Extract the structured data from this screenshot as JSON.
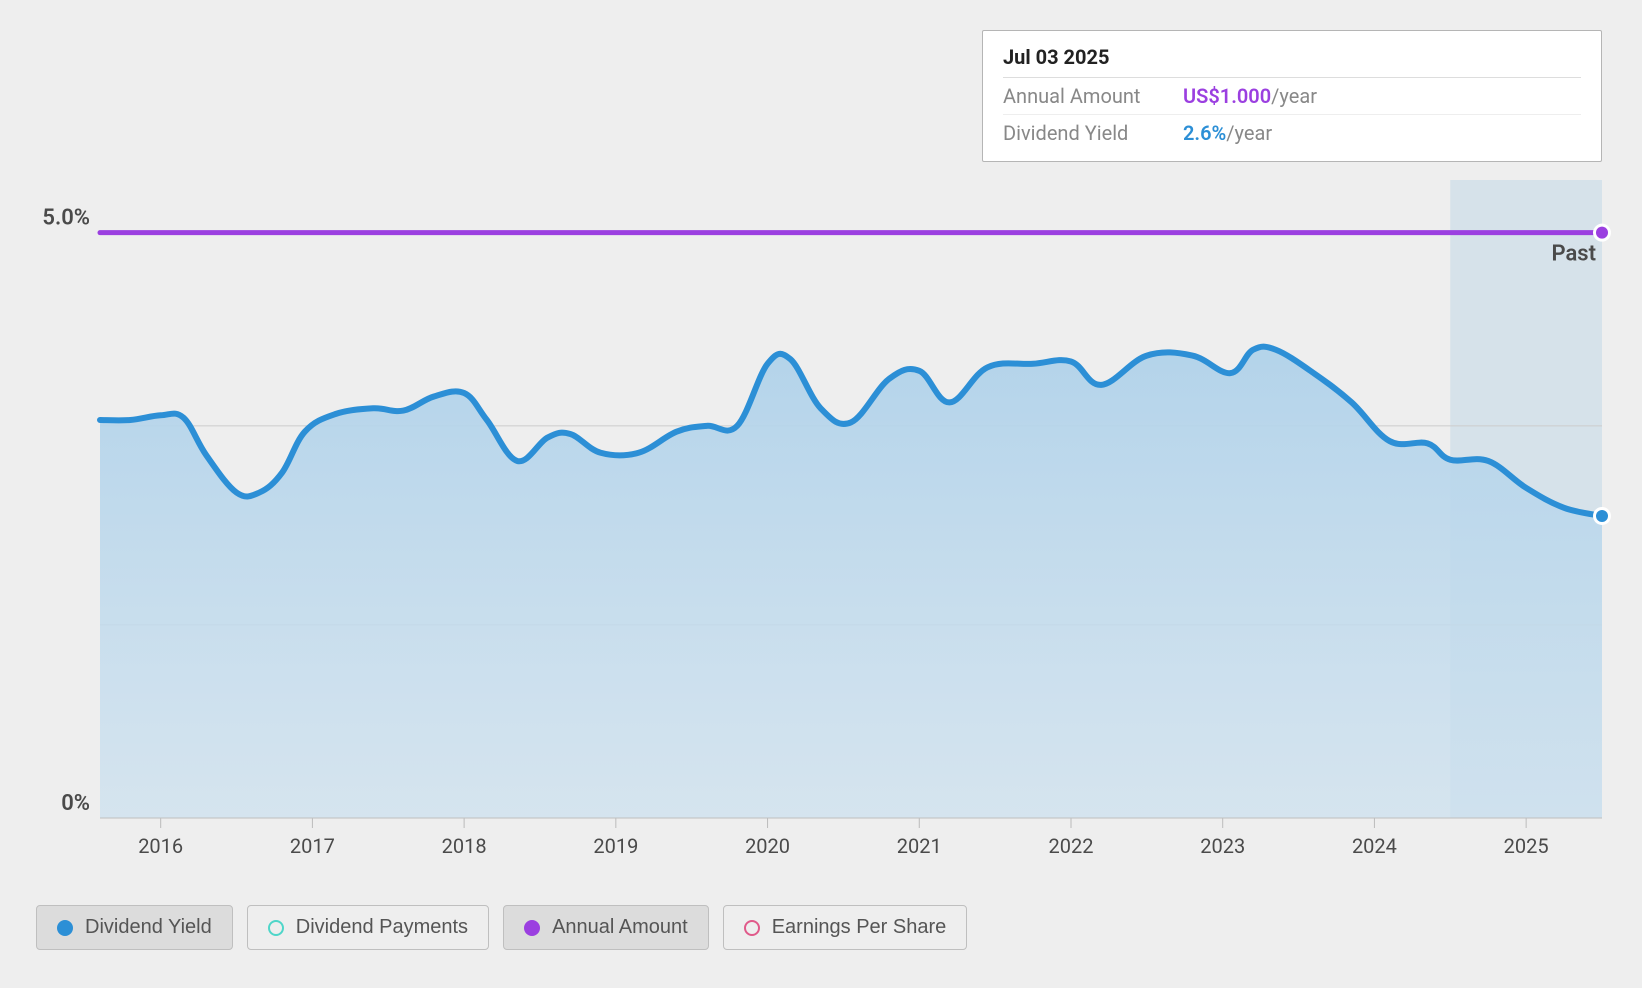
{
  "chart": {
    "type": "area-line",
    "background_color": "#eeeeee",
    "plot_background_color": "#eeeeee",
    "grid_color": "#cccccc",
    "axis_text_color": "#4a4a4a",
    "past_shade_color": "#b7d2e5",
    "past_shade_opacity": 0.45,
    "past_label": "Past",
    "x": {
      "start_year": 2015.6,
      "end_year": 2025.5,
      "ticks": [
        2016,
        2017,
        2018,
        2019,
        2020,
        2021,
        2022,
        2023,
        2024,
        2025
      ],
      "label_fontsize": 20
    },
    "y": {
      "min": 0,
      "max": 5.45,
      "ticks": [
        {
          "value": 0,
          "label": "0%"
        },
        {
          "value": 5,
          "label": "5.0%"
        }
      ],
      "minor_grid_values": [
        1.65,
        3.35
      ],
      "label_fontsize": 22
    },
    "series": {
      "annual_amount": {
        "color": "#9b3fe0",
        "line_width": 5,
        "end_dot_radius": 6,
        "value_constant": 5.0
      },
      "dividend_yield": {
        "line_color": "#2c8fd6",
        "fill_top_color": "#b0d2ea",
        "fill_bottom_color": "#cde1ef",
        "line_width": 6,
        "end_dot_radius": 6,
        "points": [
          {
            "t": 2015.6,
            "v": 3.4
          },
          {
            "t": 2015.8,
            "v": 3.4
          },
          {
            "t": 2016.0,
            "v": 3.44
          },
          {
            "t": 2016.15,
            "v": 3.42
          },
          {
            "t": 2016.3,
            "v": 3.1
          },
          {
            "t": 2016.5,
            "v": 2.78
          },
          {
            "t": 2016.65,
            "v": 2.78
          },
          {
            "t": 2016.8,
            "v": 2.95
          },
          {
            "t": 2016.95,
            "v": 3.3
          },
          {
            "t": 2017.15,
            "v": 3.45
          },
          {
            "t": 2017.4,
            "v": 3.5
          },
          {
            "t": 2017.6,
            "v": 3.48
          },
          {
            "t": 2017.8,
            "v": 3.6
          },
          {
            "t": 2018.0,
            "v": 3.63
          },
          {
            "t": 2018.15,
            "v": 3.4
          },
          {
            "t": 2018.35,
            "v": 3.05
          },
          {
            "t": 2018.55,
            "v": 3.25
          },
          {
            "t": 2018.7,
            "v": 3.28
          },
          {
            "t": 2018.9,
            "v": 3.12
          },
          {
            "t": 2019.15,
            "v": 3.12
          },
          {
            "t": 2019.4,
            "v": 3.3
          },
          {
            "t": 2019.6,
            "v": 3.35
          },
          {
            "t": 2019.8,
            "v": 3.35
          },
          {
            "t": 2020.0,
            "v": 3.88
          },
          {
            "t": 2020.15,
            "v": 3.92
          },
          {
            "t": 2020.35,
            "v": 3.5
          },
          {
            "t": 2020.55,
            "v": 3.38
          },
          {
            "t": 2020.8,
            "v": 3.75
          },
          {
            "t": 2021.0,
            "v": 3.82
          },
          {
            "t": 2021.2,
            "v": 3.55
          },
          {
            "t": 2021.45,
            "v": 3.85
          },
          {
            "t": 2021.75,
            "v": 3.88
          },
          {
            "t": 2022.0,
            "v": 3.9
          },
          {
            "t": 2022.2,
            "v": 3.7
          },
          {
            "t": 2022.5,
            "v": 3.95
          },
          {
            "t": 2022.8,
            "v": 3.95
          },
          {
            "t": 2023.05,
            "v": 3.8
          },
          {
            "t": 2023.2,
            "v": 4.0
          },
          {
            "t": 2023.35,
            "v": 4.0
          },
          {
            "t": 2023.6,
            "v": 3.8
          },
          {
            "t": 2023.85,
            "v": 3.55
          },
          {
            "t": 2024.1,
            "v": 3.22
          },
          {
            "t": 2024.35,
            "v": 3.2
          },
          {
            "t": 2024.5,
            "v": 3.06
          },
          {
            "t": 2024.75,
            "v": 3.05
          },
          {
            "t": 2025.0,
            "v": 2.82
          },
          {
            "t": 2025.25,
            "v": 2.65
          },
          {
            "t": 2025.5,
            "v": 2.58
          }
        ]
      }
    },
    "past_region_start": 2024.5
  },
  "tooltip": {
    "date": "Jul 03 2025",
    "rows": [
      {
        "label": "Annual Amount",
        "value": "US$1.000",
        "unit": "/year",
        "value_color": "#9b3fe0"
      },
      {
        "label": "Dividend Yield",
        "value": "2.6%",
        "unit": "/year",
        "value_color": "#2c8fd6"
      }
    ]
  },
  "legend": [
    {
      "label": "Dividend Yield",
      "kind": "dot",
      "color": "#2c8fd6",
      "active": true
    },
    {
      "label": "Dividend Payments",
      "kind": "ring",
      "color": "#4fd6c9",
      "active": false
    },
    {
      "label": "Annual Amount",
      "kind": "dot",
      "color": "#9b3fe0",
      "active": true
    },
    {
      "label": "Earnings Per Share",
      "kind": "ring",
      "color": "#e05a8a",
      "active": false
    }
  ]
}
